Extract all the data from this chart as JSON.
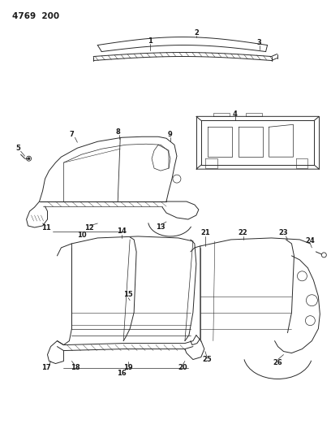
{
  "title": "4769  200",
  "background_color": "#ffffff",
  "line_color": "#2a2a2a",
  "text_color": "#1a1a1a",
  "figsize": [
    4.08,
    5.33
  ],
  "dpi": 100
}
